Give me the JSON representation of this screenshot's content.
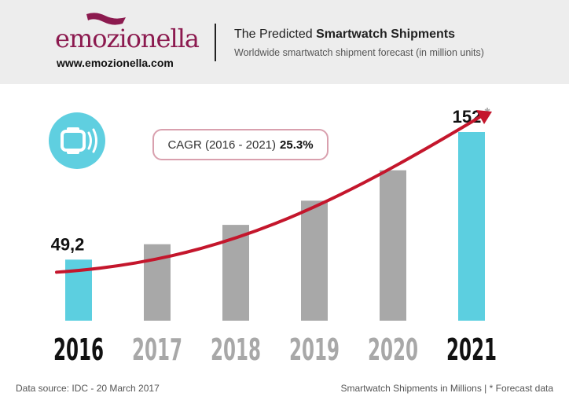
{
  "brand": {
    "name": "Emozionella",
    "logo_text": "emozionella",
    "url": "www.emozionella.com",
    "color": "#8c1a4f"
  },
  "header": {
    "title_prefix": "The Predicted",
    "title_bold": "Smartwatch Shipments",
    "subtitle": "Worldwide smartwatch shipment forecast (in million units)"
  },
  "icon": {
    "name": "smartwatch-icon",
    "color": "#5fcfe0"
  },
  "cagr": {
    "label": "CAGR (2016 - 2021)",
    "value": "25.3%"
  },
  "chart_data": {
    "type": "bar",
    "categories": [
      "2016",
      "2017",
      "2018",
      "2019",
      "2020",
      "2021"
    ],
    "values": [
      49.2,
      61.6,
      77.2,
      96.7,
      121.2,
      152
    ],
    "value_labels": [
      "49,2",
      "",
      "",
      "",
      "",
      "152"
    ],
    "forecast_marker": "*",
    "highlighted": [
      "2016",
      "2021"
    ],
    "colors": {
      "highlight": "#5ccfe0",
      "normal": "#a8a8a8",
      "trend": "#c4162c"
    },
    "title": "",
    "xlabel": "",
    "ylabel": "",
    "ylim": [
      0,
      152
    ],
    "grid": false,
    "trend_arrow": true
  },
  "footer": {
    "source": "Data source: IDC - 20 March 2017",
    "note": "Smartwatch Shipments in Millions | * Forecast data"
  }
}
